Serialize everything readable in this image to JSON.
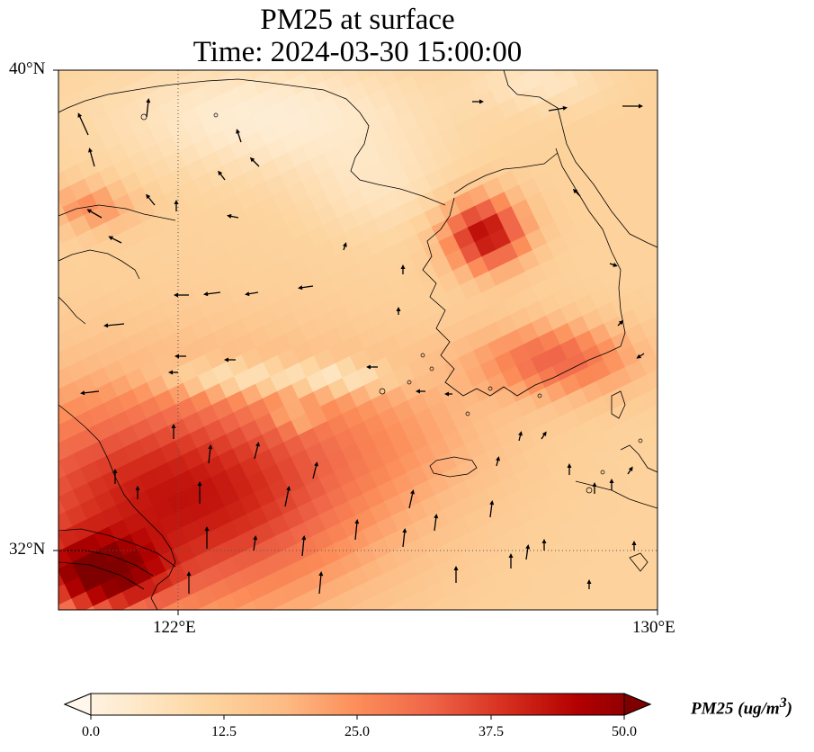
{
  "title": {
    "line1": "PM25 at surface",
    "line2": "Time: 2024-03-30 15:00:00"
  },
  "map": {
    "region": "Yellow Sea / Korean Peninsula",
    "variable": "PM25",
    "lon_range": [
      120,
      130
    ],
    "lat_range": [
      31,
      40
    ],
    "colormap": "OrRd",
    "gridlines": "dotted",
    "x_ticks": [
      "122°E",
      "130°E"
    ],
    "y_ticks": [
      "40°N",
      "32°N"
    ]
  },
  "colorbar": {
    "label_main": "PM25 (ug/m",
    "label_sup": "3",
    "label_end": ")",
    "min": 0,
    "max": 50,
    "extend": "both",
    "ticks": [
      "0.0",
      "12.5",
      "25.0",
      "37.5",
      "50.0"
    ],
    "colors": [
      "#fff7ec",
      "#fee8c8",
      "#fdd49e",
      "#fdbb84",
      "#fc8d59",
      "#ef6548",
      "#d7301f",
      "#b30000",
      "#7f0000"
    ]
  }
}
